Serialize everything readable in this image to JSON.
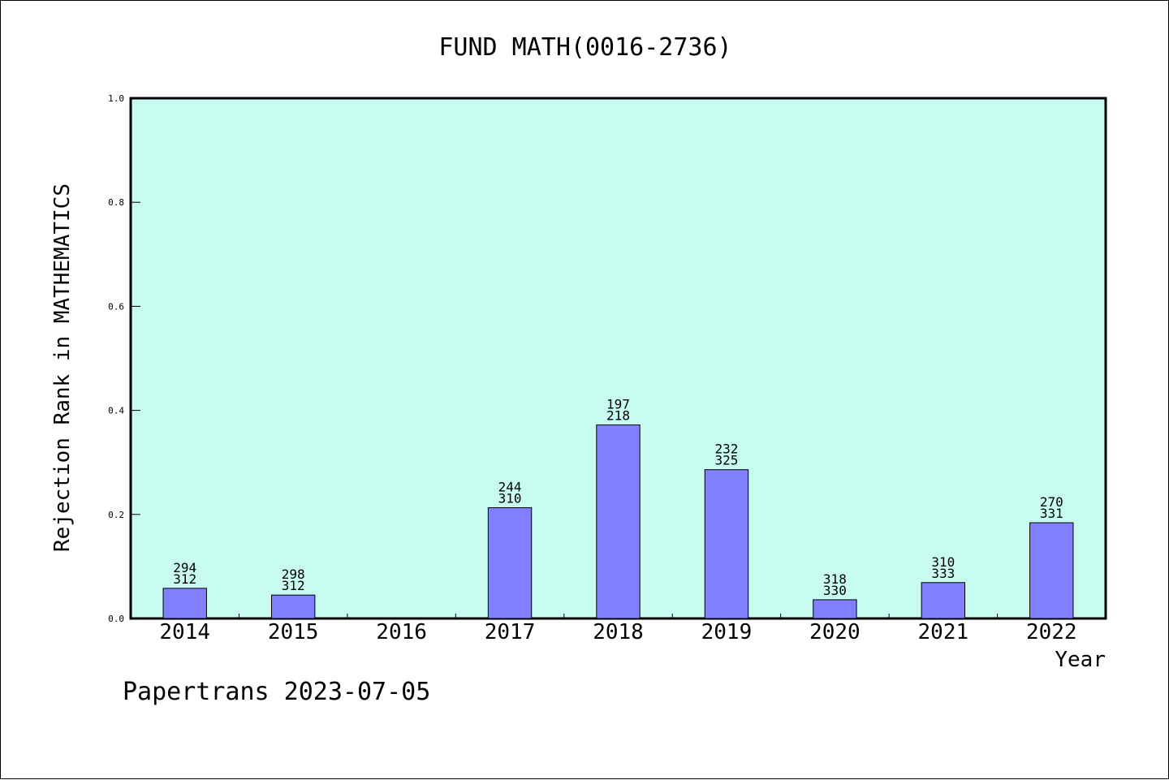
{
  "chart_data": {
    "type": "bar",
    "title": "FUND MATH(0016-2736)",
    "xlabel": "Year",
    "ylabel": "Rejection Rank in MATHEMATICS",
    "ylim": [
      0,
      1.0
    ],
    "yticks": [
      "0.0",
      "0.2",
      "0.4",
      "0.6",
      "0.8",
      "1.0"
    ],
    "ytick_values": [
      0,
      0.2,
      0.4,
      0.6,
      0.8,
      1.0
    ],
    "categories": [
      "2014",
      "2015",
      "2016",
      "2017",
      "2018",
      "2019",
      "2020",
      "2021",
      "2022"
    ],
    "values": [
      0.058,
      0.045,
      null,
      0.213,
      0.372,
      0.286,
      0.036,
      0.069,
      0.184
    ],
    "label_top": [
      "294",
      "298",
      "",
      "244",
      "197",
      "232",
      "318",
      "310",
      "270"
    ],
    "label_bottom": [
      "312",
      "312",
      "",
      "310",
      "218",
      "325",
      "330",
      "333",
      "331"
    ],
    "grid": false,
    "legend": "none"
  },
  "footer": "Papertrans 2023-07-05",
  "colors": {
    "plot_background": "#c8fcf0",
    "bar_fill": "#8080ff",
    "bar_stroke": "#000000",
    "axis": "#000000"
  }
}
